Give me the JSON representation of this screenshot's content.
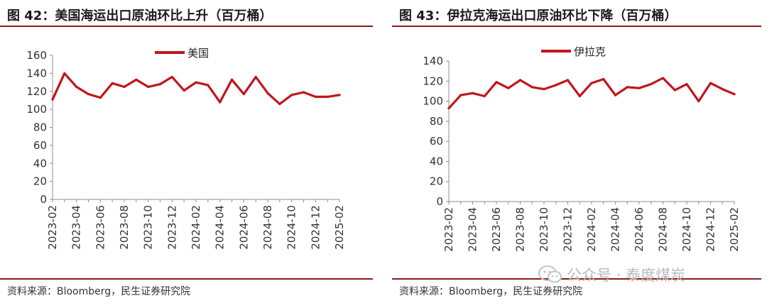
{
  "panels": [
    {
      "title": "图 42：美国海运出口原油环比上升（百万桶）",
      "source": "资料来源：Bloomberg，民生证券研究院"
    },
    {
      "title": "图 43：伊拉克海运出口原油环比下降（百万桶）",
      "source": "资料来源：Bloomberg，民生证券研究院"
    }
  ],
  "watermark": {
    "icon": "wechat-icon",
    "text": "公众号 · 泰度煤炭"
  },
  "colors": {
    "series": "#c0161c",
    "rule": "#8b1a1a",
    "axis": "#8c8c8c"
  },
  "chart_data": [
    {
      "type": "line",
      "x": [
        "2023-02",
        "2023-03",
        "2023-04",
        "2023-05",
        "2023-06",
        "2023-07",
        "2023-08",
        "2023-09",
        "2023-10",
        "2023-11",
        "2023-12",
        "2024-01",
        "2024-02",
        "2024-03",
        "2024-04",
        "2024-05",
        "2024-06",
        "2024-07",
        "2024-08",
        "2024-09",
        "2024-10",
        "2024-11",
        "2024-12",
        "2025-01",
        "2025-02"
      ],
      "xticks": [
        "2023-02",
        "2023-04",
        "2023-06",
        "2023-08",
        "2023-10",
        "2023-12",
        "2024-02",
        "2024-04",
        "2024-06",
        "2024-08",
        "2024-10",
        "2024-12",
        "2025-02"
      ],
      "series": [
        {
          "name": "美国",
          "values": [
            111,
            140,
            125,
            117,
            113,
            129,
            125,
            133,
            125,
            128,
            136,
            121,
            130,
            127,
            108,
            133,
            117,
            136,
            118,
            106,
            116,
            119,
            114,
            114,
            116
          ]
        }
      ],
      "ylim": [
        0,
        160
      ],
      "yticks": [
        0,
        20,
        40,
        60,
        80,
        100,
        120,
        140,
        160
      ],
      "legend": "top-center",
      "grid": false
    },
    {
      "type": "line",
      "x": [
        "2023-02",
        "2023-03",
        "2023-04",
        "2023-05",
        "2023-06",
        "2023-07",
        "2023-08",
        "2023-09",
        "2023-10",
        "2023-11",
        "2023-12",
        "2024-01",
        "2024-02",
        "2024-03",
        "2024-04",
        "2024-05",
        "2024-06",
        "2024-07",
        "2024-08",
        "2024-09",
        "2024-10",
        "2024-11",
        "2024-12",
        "2025-01",
        "2025-02"
      ],
      "xticks": [
        "2023-02",
        "2023-04",
        "2023-06",
        "2023-08",
        "2023-10",
        "2023-12",
        "2024-02",
        "2024-04",
        "2024-06",
        "2024-08",
        "2024-10",
        "2024-12",
        "2025-02"
      ],
      "series": [
        {
          "name": "伊拉克",
          "values": [
            93,
            106,
            108,
            105,
            119,
            113,
            121,
            114,
            112,
            116,
            121,
            105,
            118,
            122,
            106,
            114,
            113,
            117,
            123,
            111,
            117,
            100,
            118,
            112,
            107
          ]
        }
      ],
      "ylim": [
        0,
        140
      ],
      "yticks": [
        0,
        20,
        40,
        60,
        80,
        100,
        120,
        140
      ],
      "legend": "top-center",
      "grid": false
    }
  ]
}
